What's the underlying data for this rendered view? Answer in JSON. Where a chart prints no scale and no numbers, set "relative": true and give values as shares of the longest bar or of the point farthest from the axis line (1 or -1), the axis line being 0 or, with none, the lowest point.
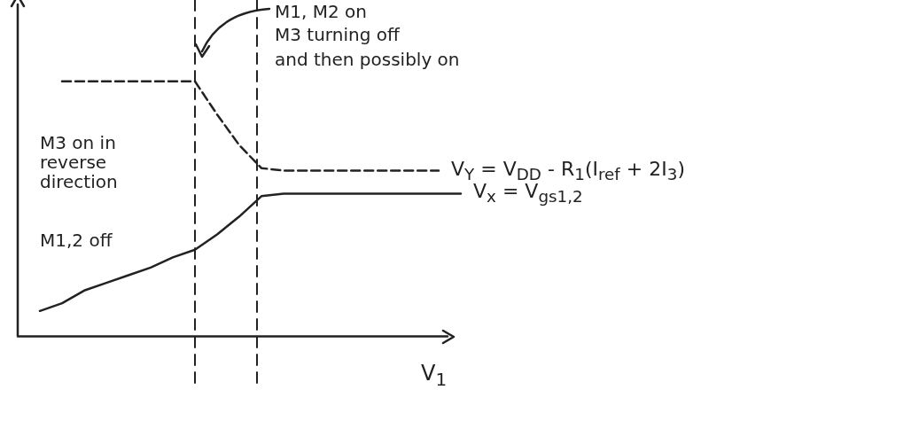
{
  "chart_data": {
    "type": "line",
    "relative": true,
    "xlabel": "V$_{1}$",
    "legend": false,
    "grid": false,
    "marker": "none",
    "categories": [
      null,
      null,
      null,
      null,
      null,
      null,
      null,
      null,
      null,
      null,
      null,
      null,
      null,
      null,
      null,
      null,
      null,
      null,
      null,
      null,
      null,
      null
    ],
    "series": [
      {
        "name": "V$_{Y}$ = V$_{DD}$ - R$_{1}$(I$_{ref}$ + 2I$_{3}$)",
        "color": "#222222",
        "line_style": "dashed",
        "values": [
          null,
          null,
          1,
          1,
          1,
          1,
          1,
          1,
          1,
          0.87,
          0.75,
          0.66,
          0.65,
          0.65,
          0.65,
          0.65,
          0.65,
          0.65,
          0.65,
          0.65,
          null,
          null
        ]
      },
      {
        "name": "V$_{x}$ = V$_{gs1,2}$",
        "color": "#222222",
        "line_style": "solid",
        "values": [
          null,
          0.1,
          0.13,
          0.18,
          0.21,
          0.24,
          0.27,
          0.31,
          0.34,
          0.4,
          0.47,
          0.55,
          0.56,
          0.56,
          0.56,
          0.56,
          0.56,
          0.56,
          0.56,
          0.56,
          0.56,
          null
        ]
      }
    ],
    "annotations": [
      "M1, M2 on",
      "M3 turning off",
      "and then possibly on",
      "M3 on in reverse direction",
      "M1,2 off"
    ]
  }
}
